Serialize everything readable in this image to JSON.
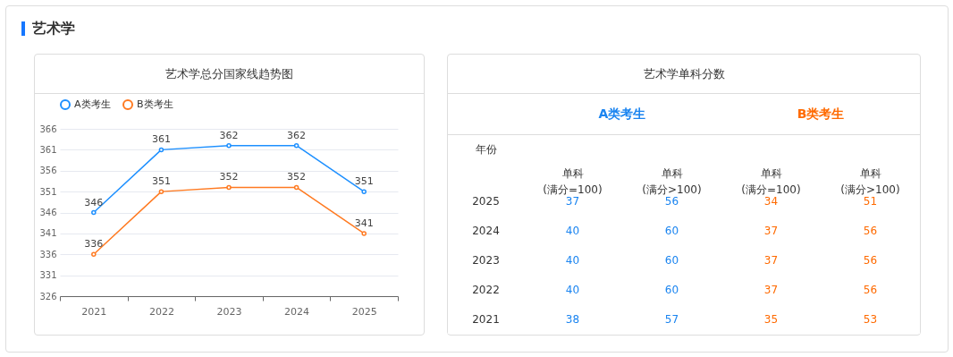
{
  "chart_data": [
    {
      "type": "line",
      "title": "艺术学总分国家线趋势图",
      "annotations": [
        "艺术学"
      ],
      "categories": [
        "2021",
        "2022",
        "2023",
        "2024",
        "2025"
      ],
      "series": [
        {
          "name": "A类考生",
          "color": "#1e90ff",
          "values": [
            346,
            361,
            362,
            362,
            351
          ]
        },
        {
          "name": "B类考生",
          "color": "#ff7a21",
          "values": [
            336,
            351,
            352,
            352,
            341
          ]
        }
      ],
      "ylim": [
        326,
        366
      ],
      "yticks": [
        326,
        331,
        336,
        341,
        346,
        351,
        356,
        361,
        366
      ],
      "grid": "y",
      "legend": "top",
      "marker": "circle",
      "data_labels": true
    },
    {
      "type": "heatmap",
      "title": "艺术学单科分数",
      "ylabel": "年份",
      "annotations": [
        "A类考生",
        "B类考生"
      ],
      "colors": [
        "#1a84f0",
        "#1a84f0",
        "#ff6a00",
        "#ff6a00"
      ],
      "categories": [
        "单科\n(满分=100)",
        "单科\n(满分>100)",
        "单科\n(满分=100)",
        "单科\n(满分>100)"
      ],
      "y_categories": [
        "2025",
        "2024",
        "2023",
        "2022",
        "2021"
      ],
      "cells": [
        [
          37,
          56,
          34,
          51
        ],
        [
          40,
          60,
          37,
          56
        ],
        [
          40,
          60,
          37,
          56
        ],
        [
          40,
          60,
          37,
          56
        ],
        [
          38,
          57,
          35,
          53
        ]
      ],
      "data_labels": true
    }
  ]
}
